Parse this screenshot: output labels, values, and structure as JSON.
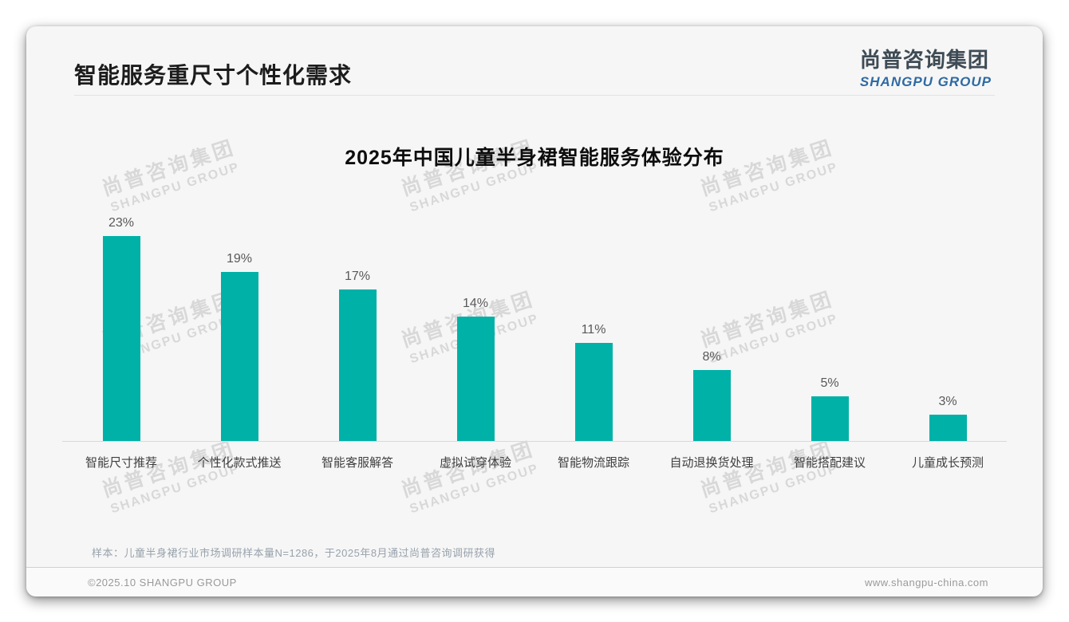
{
  "page": {
    "title": "智能服务重尺寸个性化需求",
    "logo": {
      "cn": "尚普咨询集团",
      "en": "SHANGPU GROUP"
    },
    "watermark": {
      "cn": "尚普咨询集团",
      "en": "SHANGPU GROUP"
    },
    "footer": {
      "note": "样本：儿童半身裙行业市场调研样本量N=1286，于2025年8月通过尚普咨询调研获得",
      "copyright": "©2025.10 SHANGPU GROUP",
      "website": "www.shangpu-china.com"
    }
  },
  "chart_data": {
    "type": "bar",
    "title": "2025年中国儿童半身裙智能服务体验分布",
    "categories": [
      "智能尺寸推荐",
      "个性化款式推送",
      "智能客服解答",
      "虚拟试穿体验",
      "智能物流跟踪",
      "自动退换货处理",
      "智能搭配建议",
      "儿童成长预测"
    ],
    "values": [
      23,
      19,
      17,
      14,
      11,
      8,
      5,
      3
    ],
    "value_labels": [
      "23%",
      "19%",
      "17%",
      "14%",
      "11%",
      "8%",
      "5%",
      "3%"
    ],
    "bar_color": "#00b1a7",
    "ylabel": "",
    "xlabel": "",
    "ylim": [
      0,
      25
    ],
    "grid": false,
    "legend": false
  }
}
